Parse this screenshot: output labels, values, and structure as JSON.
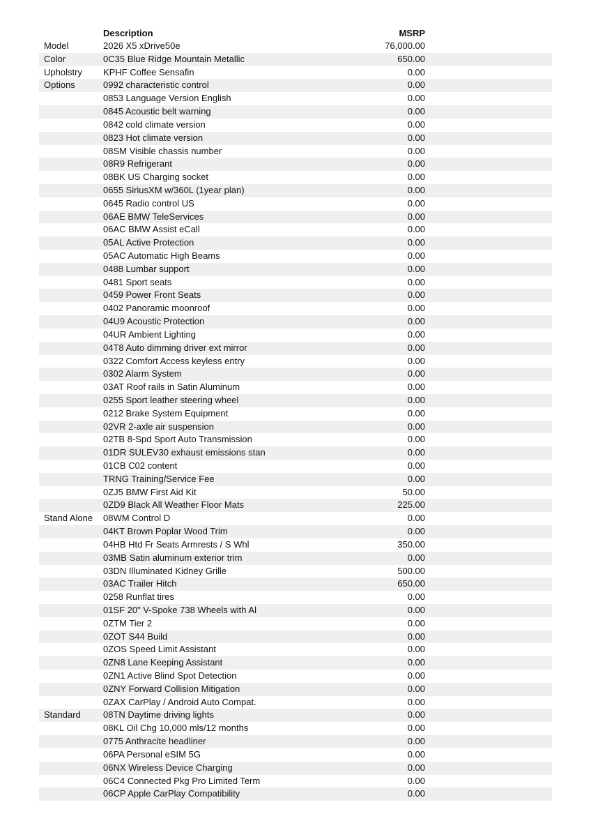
{
  "header": {
    "description": "Description",
    "msrp": "MSRP"
  },
  "rows": [
    {
      "category": "Model",
      "description": "2026 X5 xDrive50e",
      "msrp": "76,000.00"
    },
    {
      "category": "Color",
      "description": "0C35 Blue Ridge Mountain Metallic",
      "msrp": "650.00"
    },
    {
      "category": "Upholstry",
      "description": "KPHF Coffee Sensafin",
      "msrp": "0.00"
    },
    {
      "category": "Options",
      "description": "0992 characteristic control",
      "msrp": "0.00"
    },
    {
      "category": "",
      "description": "0853 Language Version English",
      "msrp": "0.00"
    },
    {
      "category": "",
      "description": "0845 Acoustic belt warning",
      "msrp": "0.00"
    },
    {
      "category": "",
      "description": "0842 cold climate version",
      "msrp": "0.00"
    },
    {
      "category": "",
      "description": "0823 Hot climate version",
      "msrp": "0.00"
    },
    {
      "category": "",
      "description": "08SM Visible chassis number",
      "msrp": "0.00"
    },
    {
      "category": "",
      "description": "08R9 Refrigerant",
      "msrp": "0.00"
    },
    {
      "category": "",
      "description": "08BK US Charging socket",
      "msrp": "0.00"
    },
    {
      "category": "",
      "description": "0655 SiriusXM w/360L (1year plan)",
      "msrp": "0.00"
    },
    {
      "category": "",
      "description": "0645 Radio control US",
      "msrp": "0.00"
    },
    {
      "category": "",
      "description": "06AE BMW TeleServices",
      "msrp": "0.00"
    },
    {
      "category": "",
      "description": "06AC BMW Assist eCall",
      "msrp": "0.00"
    },
    {
      "category": "",
      "description": "05AL Active Protection",
      "msrp": "0.00"
    },
    {
      "category": "",
      "description": "05AC Automatic High Beams",
      "msrp": "0.00"
    },
    {
      "category": "",
      "description": "0488 Lumbar support",
      "msrp": "0.00"
    },
    {
      "category": "",
      "description": "0481 Sport seats",
      "msrp": "0.00"
    },
    {
      "category": "",
      "description": "0459 Power Front Seats",
      "msrp": "0.00"
    },
    {
      "category": "",
      "description": "0402 Panoramic moonroof",
      "msrp": "0.00"
    },
    {
      "category": "",
      "description": "04U9 Acoustic Protection",
      "msrp": "0.00"
    },
    {
      "category": "",
      "description": "04UR Ambient Lighting",
      "msrp": "0.00"
    },
    {
      "category": "",
      "description": "04T8 Auto dimming driver ext mirror",
      "msrp": "0.00"
    },
    {
      "category": "",
      "description": "0322 Comfort Access keyless entry",
      "msrp": "0.00"
    },
    {
      "category": "",
      "description": "0302 Alarm System",
      "msrp": "0.00"
    },
    {
      "category": "",
      "description": "03AT Roof rails in Satin Aluminum",
      "msrp": "0.00"
    },
    {
      "category": "",
      "description": "0255 Sport leather steering wheel",
      "msrp": "0.00"
    },
    {
      "category": "",
      "description": "0212 Brake System Equipment",
      "msrp": "0.00"
    },
    {
      "category": "",
      "description": "02VR 2-axle air suspension",
      "msrp": "0.00"
    },
    {
      "category": "",
      "description": "02TB 8-Spd Sport Auto Transmission",
      "msrp": "0.00"
    },
    {
      "category": "",
      "description": "01DR SULEV30 exhaust emissions stan",
      "msrp": "0.00"
    },
    {
      "category": "",
      "description": "01CB C02 content",
      "msrp": "0.00"
    },
    {
      "category": "",
      "description": "TRNG Training/Service Fee",
      "msrp": "0.00"
    },
    {
      "category": "",
      "description": "0ZJ5 BMW First Aid Kit",
      "msrp": "50.00"
    },
    {
      "category": "",
      "description": "0ZD9 Black All Weather Floor Mats",
      "msrp": "225.00"
    },
    {
      "category": "Stand Alone",
      "description": "08WM Control D",
      "msrp": "0.00"
    },
    {
      "category": "",
      "description": "04KT Brown Poplar Wood Trim",
      "msrp": "0.00"
    },
    {
      "category": "",
      "description": "04HB Htd Fr Seats Armrests / S Whl",
      "msrp": "350.00"
    },
    {
      "category": "",
      "description": "03MB Satin aluminum exterior trim",
      "msrp": "0.00"
    },
    {
      "category": "",
      "description": "03DN Illuminated Kidney Grille",
      "msrp": "500.00"
    },
    {
      "category": "",
      "description": "03AC Trailer Hitch",
      "msrp": "650.00"
    },
    {
      "category": "",
      "description": "0258 Runflat tires",
      "msrp": "0.00"
    },
    {
      "category": "",
      "description": "01SF 20\" V-Spoke 738 Wheels with Al",
      "msrp": "0.00"
    },
    {
      "category": "",
      "description": "0ZTM Tier 2",
      "msrp": "0.00"
    },
    {
      "category": "",
      "description": "0ZOT S44 Build",
      "msrp": "0.00"
    },
    {
      "category": "",
      "description": "0ZOS Speed Limit Assistant",
      "msrp": "0.00"
    },
    {
      "category": "",
      "description": "0ZN8 Lane Keeping Assistant",
      "msrp": "0.00"
    },
    {
      "category": "",
      "description": "0ZN1 Active Blind Spot Detection",
      "msrp": "0.00"
    },
    {
      "category": "",
      "description": "0ZNY Forward Collision Mitigation",
      "msrp": "0.00"
    },
    {
      "category": "",
      "description": "0ZAX CarPlay / Android Auto Compat.",
      "msrp": "0.00"
    },
    {
      "category": "Standard",
      "description": "08TN Daytime driving lights",
      "msrp": "0.00"
    },
    {
      "category": "",
      "description": "08KL Oil Chg 10,000 mls/12 months",
      "msrp": "0.00"
    },
    {
      "category": "",
      "description": "0775 Anthracite headliner",
      "msrp": "0.00"
    },
    {
      "category": "",
      "description": "06PA Personal eSIM 5G",
      "msrp": "0.00"
    },
    {
      "category": "",
      "description": "06NX Wireless Device Charging",
      "msrp": "0.00"
    },
    {
      "category": "",
      "description": "06C4 Connected Pkg Pro Limited Term",
      "msrp": "0.00"
    },
    {
      "category": "",
      "description": "06CP Apple CarPlay Compatibility",
      "msrp": "0.00"
    }
  ]
}
